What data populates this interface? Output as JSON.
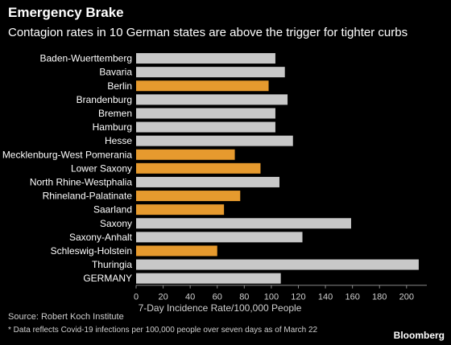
{
  "title": "Emergency Brake",
  "subtitle": "Contagion rates in 10 German states are above the trigger for tighter curbs",
  "source": "Source: Robert Koch Institute",
  "note": "* Data reflects Covid-19 infections per 100,000 people over seven days as of March 22",
  "logo": "Bloomberg",
  "colors": {
    "background": "#000000",
    "bar_default": "#c8c8c8",
    "bar_highlight": "#e69a2e",
    "text": "#ffffff"
  },
  "chart_data": {
    "type": "bar",
    "orientation": "horizontal",
    "xlabel": "7-Day Incidence Rate/100,000 People",
    "xlim": [
      0,
      215
    ],
    "xticks": [
      0,
      20,
      40,
      60,
      80,
      100,
      120,
      140,
      160,
      180,
      200
    ],
    "grid": false,
    "categories": [
      "Baden-Wuerttemberg",
      "Bavaria",
      "Berlin",
      "Brandenburg",
      "Bremen",
      "Hamburg",
      "Hesse",
      "Mecklenburg-West Pomerania",
      "Lower Saxony",
      "North Rhine-Westphalia",
      "Rhineland-Palatinate",
      "Saarland",
      "Saxony",
      "Saxony-Anhalt",
      "Schleswig-Holstein",
      "Thuringia",
      "GERMANY"
    ],
    "values": [
      103,
      110,
      98,
      112,
      103,
      103,
      116,
      73,
      92,
      106,
      77,
      65,
      159,
      123,
      60,
      209,
      107
    ],
    "highlighted": [
      false,
      false,
      true,
      false,
      false,
      false,
      false,
      true,
      true,
      false,
      true,
      true,
      false,
      false,
      true,
      false,
      false
    ]
  }
}
